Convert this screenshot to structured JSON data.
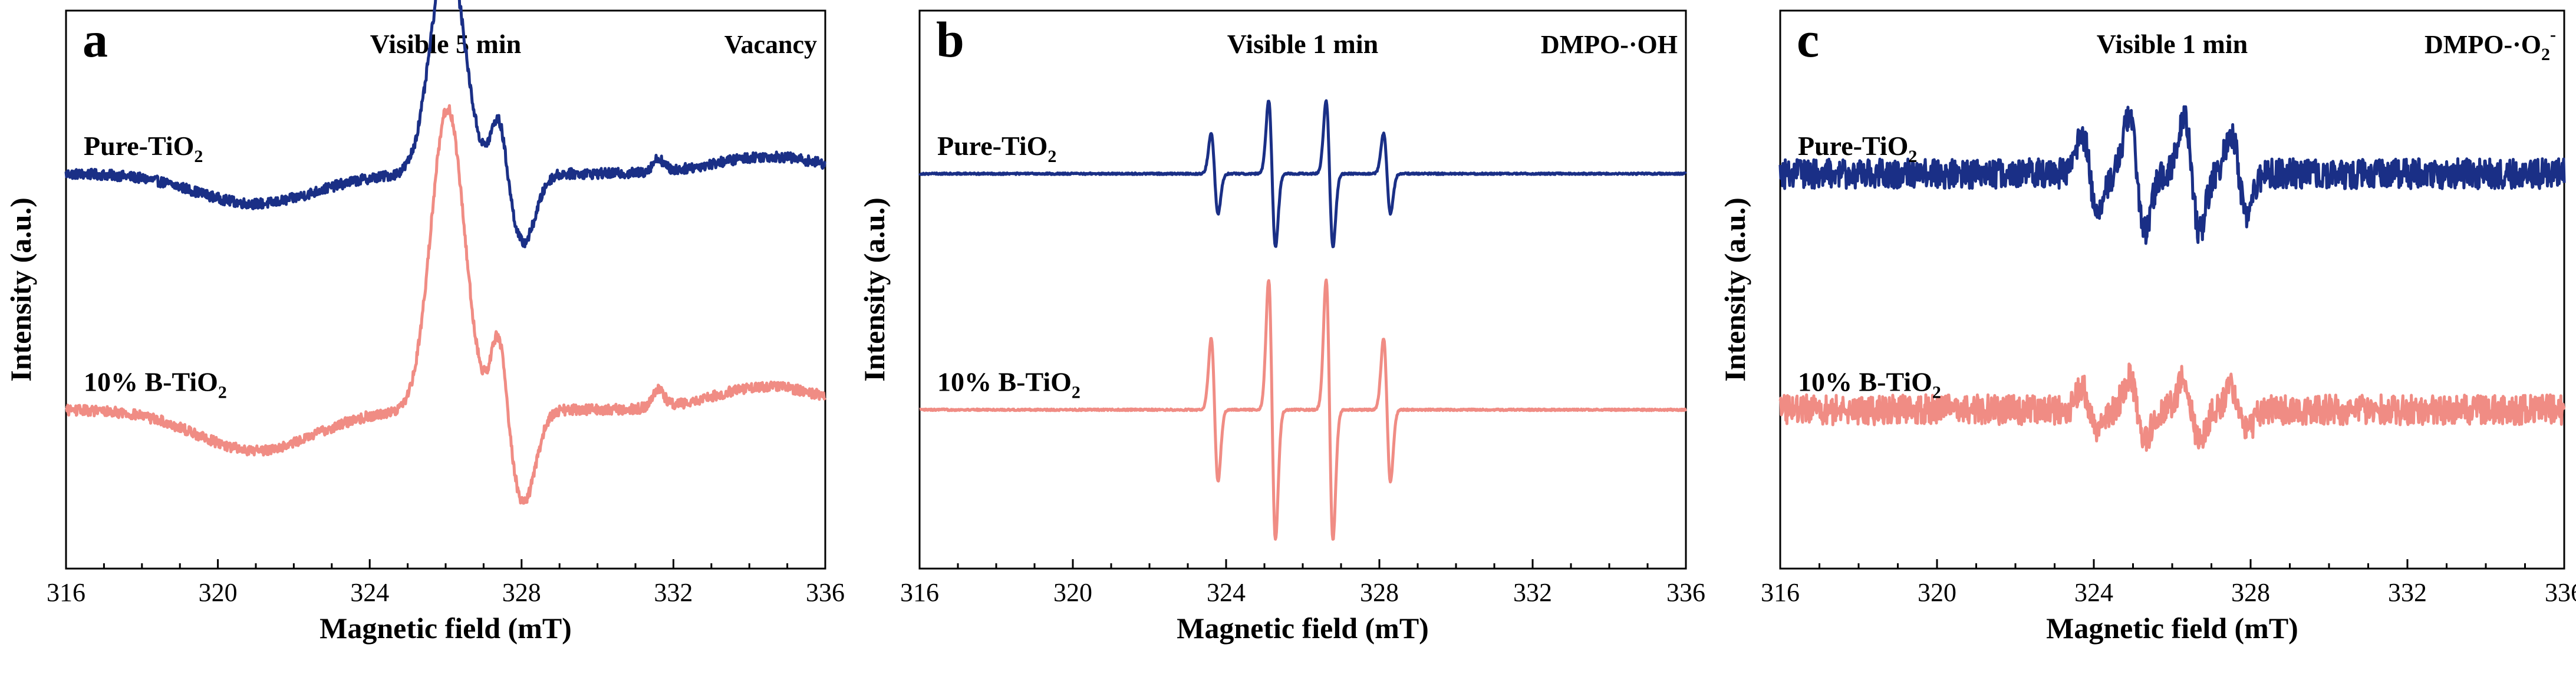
{
  "chart_data": [
    {
      "type": "line",
      "panel_label": "a",
      "condition": "Visible 5 min",
      "species": "Vacancy",
      "species_suffix": "",
      "xlabel": "Magnetic field (mT)",
      "ylabel": "Intensity (a.u.)",
      "xlim": [
        316,
        336
      ],
      "x_ticks": [
        "316",
        "320",
        "324",
        "328",
        "332",
        "336"
      ],
      "grid": false,
      "series": [
        {
          "name": "Pure-TiO",
          "name_sub": "2",
          "color": "#1a2f86",
          "signal_kind": "broad",
          "baseline": 0.62,
          "amp": 1.0,
          "noise": 0.012
        },
        {
          "name": "10% B-TiO",
          "name_sub": "2",
          "color": "#f08c84",
          "signal_kind": "broad",
          "baseline": 0.07,
          "amp": 1.35,
          "noise": 0.012
        }
      ],
      "ylim": [
        -0.3,
        1.0
      ]
    },
    {
      "type": "line",
      "panel_label": "b",
      "condition": "Visible 1 min",
      "species": "DMPO-·OH",
      "species_suffix": "",
      "xlabel": "Magnetic field (mT)",
      "ylabel": "Intensity (a.u.)",
      "xlim": [
        316,
        336
      ],
      "x_ticks": [
        "316",
        "320",
        "324",
        "328",
        "332",
        "336"
      ],
      "grid": false,
      "series": [
        {
          "name": "Pure-TiO",
          "name_sub": "2",
          "color": "#1a2f86",
          "signal_kind": "quartet",
          "baseline": 0.62,
          "line_positions": [
            323.7,
            325.2,
            326.7,
            328.2
          ],
          "line_amps": [
            0.55,
            1.0,
            1.0,
            0.55
          ],
          "amp": 0.28,
          "noise": 0.002
        },
        {
          "name": "10% B-TiO",
          "name_sub": "2",
          "color": "#f08c84",
          "signal_kind": "quartet",
          "baseline": 0.07,
          "line_positions": [
            323.7,
            325.2,
            326.7,
            328.2
          ],
          "line_amps": [
            0.55,
            1.0,
            1.0,
            0.55
          ],
          "amp": 0.5,
          "noise": 0.002
        }
      ],
      "ylim": [
        -0.3,
        1.0
      ]
    },
    {
      "type": "line",
      "panel_label": "c",
      "condition": "Visible 1 min",
      "species": "DMPO-·O",
      "species_suffix": "2",
      "species_superscript": "-",
      "xlabel": "Magnetic field (mT)",
      "ylabel": "Intensity (a.u.)",
      "xlim": [
        316,
        336
      ],
      "x_ticks": [
        "316",
        "320",
        "324",
        "328",
        "332",
        "336"
      ],
      "grid": false,
      "series": [
        {
          "name": "Pure-TiO",
          "name_sub": "2",
          "color": "#1a2f86",
          "signal_kind": "superoxide",
          "baseline": 0.62,
          "line_positions": [
            323.9,
            325.1,
            326.5,
            327.7
          ],
          "line_amps": [
            0.7,
            1.0,
            1.0,
            0.7
          ],
          "amp": 0.22,
          "noise": 0.035
        },
        {
          "name": "10% B-TiO",
          "name_sub": "2",
          "color": "#f08c84",
          "signal_kind": "superoxide",
          "baseline": 0.07,
          "line_positions": [
            323.9,
            325.1,
            326.5,
            327.7
          ],
          "line_amps": [
            0.7,
            1.0,
            1.0,
            0.7
          ],
          "amp": 0.12,
          "noise": 0.035
        }
      ],
      "ylim": [
        -0.3,
        1.0
      ]
    }
  ]
}
